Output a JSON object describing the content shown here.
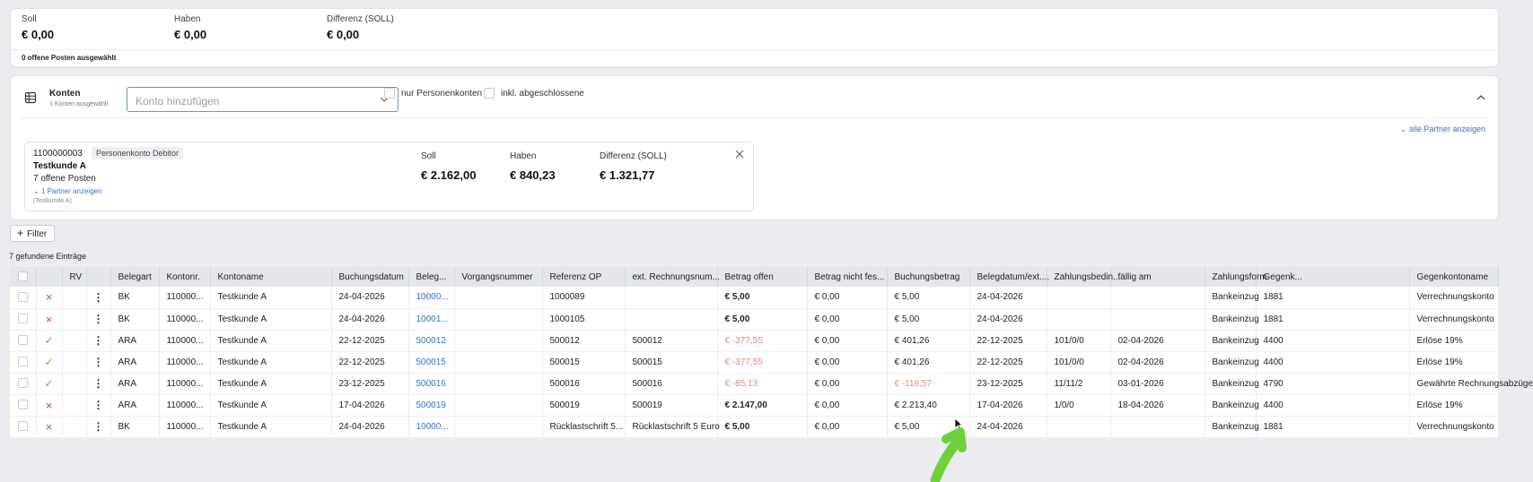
{
  "summary": {
    "soll_label": "Soll",
    "soll_value": "€ 0,00",
    "haben_label": "Haben",
    "haben_value": "€ 0,00",
    "diff_label": "Differenz (SOLL)",
    "diff_value": "€ 0,00",
    "note": "0 offene Posten ausgewählt"
  },
  "konten": {
    "title": "Konten",
    "subtitle": "1 Konten ausgewählt",
    "input_placeholder": "Konto hinzufügen",
    "cb1_label": "nur Personenkonten",
    "cb2_label": "inkl. abgeschlossene",
    "alle_partner": "alle Partner anzeigen",
    "account": {
      "number": "1100000003",
      "badge": "Personenkonto Debitor",
      "name": "Testkunde A",
      "open_items": "7 offene Posten",
      "partner_link": "1 Partner anzeigen",
      "partner_sub": "(Testkunde A)",
      "soll_label": "Soll",
      "soll_value": "€ 2.162,00",
      "haben_label": "Haben",
      "haben_value": "€ 840,23",
      "diff_label": "Differenz (SOLL)",
      "diff_value": "€ 1.321,77"
    }
  },
  "filter_label": "Filter",
  "found_label": "7 gefundene Einträge",
  "table": {
    "headers": [
      "RV",
      "Belegart",
      "Kontonr.",
      "Kontoname",
      "Buchungsdatum",
      "Beleg...",
      "Vorgangsnummer",
      "Referenz OP",
      "ext. Rechnungsnum...",
      "Betrag offen",
      "Betrag nicht fes...",
      "Buchungsbetrag",
      "Belegdatum/ext....",
      "Zahlungsbedin...",
      "fällig am",
      "Zahlungsform",
      "Gegenk...",
      "Gegenkontoname"
    ],
    "rows": [
      {
        "rv": "x",
        "belegart": "BK",
        "kontonr": "110000...",
        "kontoname": "Testkunde A",
        "buchungsdatum": "24-04-2026",
        "beleg": "10000...",
        "vorgang": "",
        "referenz": "1000089",
        "extre": "",
        "betrag_offen": "€ 5,00",
        "nicht_fes": "€ 0,00",
        "buchungsbetrag": "€ 5,00",
        "belegdatum": "24-04-2026",
        "zahlungsbed": "",
        "faellig": "",
        "zahlungsform": "Bankeinzug",
        "gegenk": "1881",
        "gegenkontoname": "Verrechnungskonto"
      },
      {
        "rv": "x",
        "belegart": "BK",
        "kontonr": "110000...",
        "kontoname": "Testkunde A",
        "buchungsdatum": "24-04-2026",
        "beleg": "10001...",
        "vorgang": "",
        "referenz": "1000105",
        "extre": "",
        "betrag_offen": "€ 5,00",
        "nicht_fes": "€ 0,00",
        "buchungsbetrag": "€ 5,00",
        "belegdatum": "24-04-2026",
        "zahlungsbed": "",
        "faellig": "",
        "zahlungsform": "Bankeinzug",
        "gegenk": "1881",
        "gegenkontoname": "Verrechnungskonto"
      },
      {
        "rv": "ok",
        "belegart": "ARA",
        "kontonr": "110000...",
        "kontoname": "Testkunde A",
        "buchungsdatum": "22-12-2025",
        "beleg": "500012",
        "vorgang": "",
        "referenz": "500012",
        "extre": "500012",
        "betrag_offen": "€ -377,55",
        "nicht_fes": "€ 0,00",
        "buchungsbetrag": "€ 401,26",
        "belegdatum": "22-12-2025",
        "zahlungsbed": "101/0/0",
        "faellig": "02-04-2026",
        "zahlungsform": "Bankeinzug",
        "gegenk": "4400",
        "gegenkontoname": "Erlöse 19%"
      },
      {
        "rv": "ok",
        "belegart": "ARA",
        "kontonr": "110000...",
        "kontoname": "Testkunde A",
        "buchungsdatum": "22-12-2025",
        "beleg": "500015",
        "vorgang": "",
        "referenz": "500015",
        "extre": "500015",
        "betrag_offen": "€ -377,55",
        "nicht_fes": "€ 0,00",
        "buchungsbetrag": "€ 401,26",
        "belegdatum": "22-12-2025",
        "zahlungsbed": "101/0/0",
        "faellig": "02-04-2026",
        "zahlungsform": "Bankeinzug",
        "gegenk": "4400",
        "gegenkontoname": "Erlöse 19%"
      },
      {
        "rv": "ok",
        "belegart": "ARA",
        "kontonr": "110000...",
        "kontoname": "Testkunde A",
        "buchungsdatum": "23-12-2025",
        "beleg": "500016",
        "vorgang": "",
        "referenz": "500016",
        "extre": "500016",
        "betrag_offen": "€ -85,13",
        "nicht_fes": "€ 0,00",
        "buchungsbetrag": "€ -118,57",
        "belegdatum": "23-12-2025",
        "zahlungsbed": "11/11/2",
        "faellig": "03-01-2026",
        "zahlungsform": "Bankeinzug",
        "gegenk": "4790",
        "gegenkontoname": "Gewährte Rechnungsabzüge"
      },
      {
        "rv": "x",
        "belegart": "ARA",
        "kontonr": "110000...",
        "kontoname": "Testkunde A",
        "buchungsdatum": "17-04-2026",
        "beleg": "500019",
        "vorgang": "",
        "referenz": "500019",
        "extre": "500019",
        "betrag_offen": "€ 2.147,00",
        "nicht_fes": "€ 0,00",
        "buchungsbetrag": "€ 2.213,40",
        "belegdatum": "17-04-2026",
        "zahlungsbed": "1/0/0",
        "faellig": "18-04-2026",
        "zahlungsform": "Bankeinzug",
        "gegenk": "4400",
        "gegenkontoname": "Erlöse 19%"
      },
      {
        "rv": "x",
        "belegart": "BK",
        "kontonr": "110000...",
        "kontoname": "Testkunde A",
        "buchungsdatum": "24-04-2026",
        "beleg": "10000...",
        "vorgang": "",
        "referenz": "Rücklastschrift 5...",
        "extre": "Rücklastschrift 5 Euro",
        "betrag_offen": "€ 5,00",
        "nicht_fes": "€ 0,00",
        "buchungsbetrag": "€ 5,00",
        "belegdatum": "24-04-2026",
        "zahlungsbed": "",
        "faellig": "",
        "zahlungsform": "Bankeinzug",
        "gegenk": "1881",
        "gegenkontoname": "Verrechnungskonto"
      }
    ]
  },
  "colors": {
    "link": "#3b6fc7",
    "negative": "#e58a7d",
    "cross": "#d2463c",
    "check": "#69b544",
    "annotation_arrow": "#6fd13a"
  }
}
